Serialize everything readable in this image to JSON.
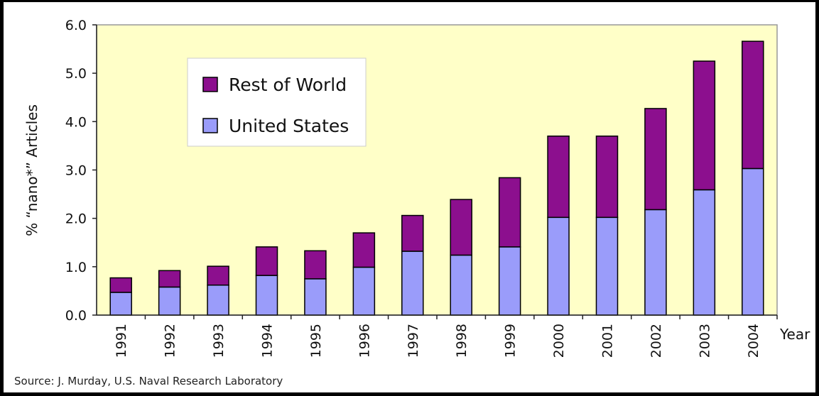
{
  "chart_data": {
    "type": "bar",
    "stacked": true,
    "categories": [
      "1991",
      "1992",
      "1993",
      "1994",
      "1995",
      "1996",
      "1997",
      "1998",
      "1999",
      "2000",
      "2001",
      "2002",
      "2003",
      "2004"
    ],
    "series": [
      {
        "name": "United States",
        "color": "#9a9cfa",
        "values": [
          0.47,
          0.58,
          0.62,
          0.82,
          0.75,
          0.99,
          1.32,
          1.24,
          1.41,
          2.02,
          2.02,
          2.18,
          2.59,
          3.03
        ]
      },
      {
        "name": "Rest of World",
        "color": "#8c0f8e",
        "values": [
          0.3,
          0.34,
          0.39,
          0.59,
          0.58,
          0.71,
          0.74,
          1.15,
          1.43,
          1.68,
          1.68,
          2.09,
          2.66,
          2.63
        ]
      }
    ],
    "xlabel": "Year",
    "ylabel": "% “nano*” Articles",
    "ylim": [
      0,
      6
    ],
    "yticks": [
      "0.0",
      "1.0",
      "2.0",
      "3.0",
      "4.0",
      "5.0",
      "6.0"
    ],
    "plot_background": "#ffffc8",
    "legend_position": "upper-left",
    "legend": [
      "Rest of World",
      "United States"
    ]
  },
  "source": "Source: J. Murday, U.S. Naval Research Laboratory"
}
